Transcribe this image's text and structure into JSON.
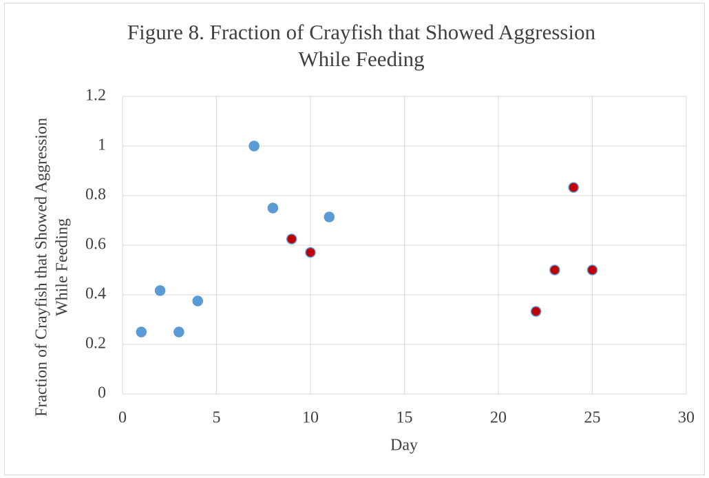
{
  "chart_data": {
    "type": "scatter",
    "title": [
      "Figure 8. Fraction of Crayfish that Showed Aggression",
      "While Feeding"
    ],
    "x_label": "Day",
    "y_label": [
      "Fraction of Crayfish that Showed Aggression",
      "While Feeding"
    ],
    "xlim": [
      0,
      30
    ],
    "xticks": [
      0,
      5,
      10,
      15,
      20,
      25,
      30
    ],
    "ylim": [
      0,
      1.2
    ],
    "yticks": [
      0,
      0.2,
      0.4,
      0.6,
      0.8,
      1,
      1.2
    ],
    "grid": true,
    "series": [
      {
        "color": "#5b9bd5",
        "edge_color": "#5b9bd5",
        "x": [
          1,
          2,
          3,
          4,
          7,
          8,
          11
        ],
        "values": [
          0.25,
          0.417,
          0.25,
          0.375,
          1,
          0.75,
          0.714
        ]
      },
      {
        "color": "#c00000",
        "edge_color": "#5b9bd5",
        "x": [
          9,
          10,
          22,
          23,
          24,
          25
        ],
        "values": [
          0.625,
          0.571,
          0.333,
          0.5,
          0.833,
          0.5
        ]
      }
    ]
  }
}
